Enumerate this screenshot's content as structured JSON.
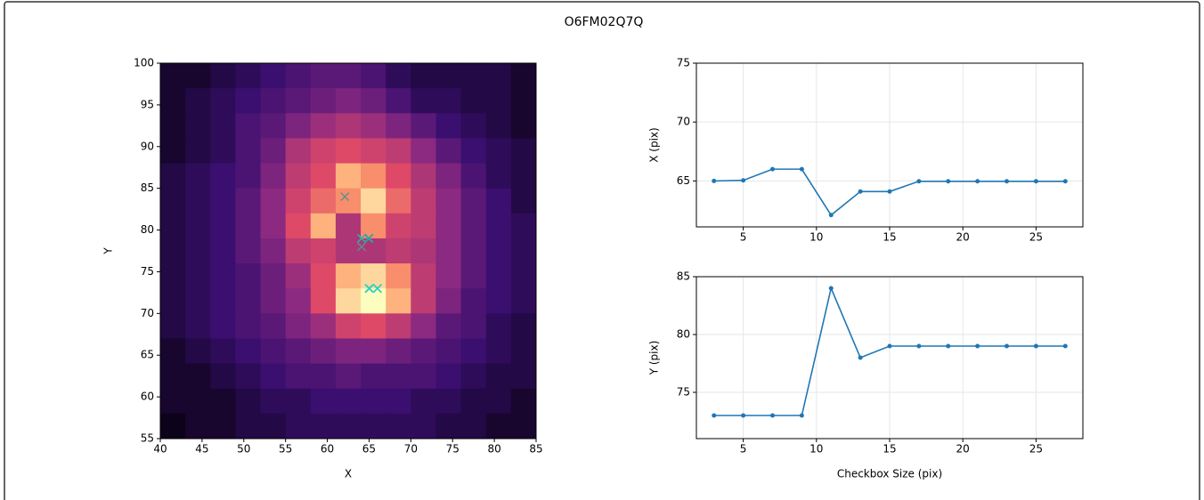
{
  "figure": {
    "title": "O6FM02Q7Q"
  },
  "chart_data": [
    {
      "type": "heatmap",
      "colormap": "magma",
      "xlabel": "X",
      "ylabel": "Y",
      "xlim": [
        40,
        85
      ],
      "ylim": [
        55,
        100
      ],
      "xticks": [
        40,
        45,
        50,
        55,
        60,
        65,
        70,
        75,
        80,
        85
      ],
      "yticks": [
        55,
        60,
        65,
        70,
        75,
        80,
        85,
        90,
        95,
        100
      ],
      "z": [
        [
          0.1,
          0.1,
          0.15,
          0.2,
          0.25,
          0.3,
          0.35,
          0.35,
          0.3,
          0.2,
          0.15,
          0.15,
          0.15,
          0.15,
          0.1
        ],
        [
          0.1,
          0.15,
          0.2,
          0.25,
          0.3,
          0.35,
          0.4,
          0.45,
          0.4,
          0.3,
          0.2,
          0.2,
          0.15,
          0.15,
          0.1
        ],
        [
          0.1,
          0.15,
          0.2,
          0.3,
          0.35,
          0.45,
          0.55,
          0.6,
          0.55,
          0.45,
          0.35,
          0.25,
          0.2,
          0.15,
          0.1
        ],
        [
          0.1,
          0.15,
          0.2,
          0.3,
          0.4,
          0.6,
          0.7,
          0.75,
          0.7,
          0.65,
          0.5,
          0.35,
          0.25,
          0.2,
          0.15
        ],
        [
          0.15,
          0.2,
          0.25,
          0.3,
          0.45,
          0.65,
          0.75,
          0.9,
          0.85,
          0.75,
          0.6,
          0.45,
          0.3,
          0.2,
          0.15
        ],
        [
          0.15,
          0.2,
          0.25,
          0.35,
          0.5,
          0.7,
          0.8,
          0.85,
          0.95,
          0.8,
          0.65,
          0.5,
          0.35,
          0.25,
          0.15
        ],
        [
          0.15,
          0.2,
          0.25,
          0.35,
          0.5,
          0.75,
          0.9,
          0.6,
          0.85,
          0.7,
          0.65,
          0.5,
          0.35,
          0.25,
          0.2
        ],
        [
          0.15,
          0.2,
          0.25,
          0.35,
          0.45,
          0.65,
          0.7,
          0.6,
          0.6,
          0.65,
          0.6,
          0.5,
          0.35,
          0.25,
          0.2
        ],
        [
          0.15,
          0.2,
          0.25,
          0.3,
          0.4,
          0.55,
          0.75,
          0.9,
          0.95,
          0.85,
          0.65,
          0.5,
          0.35,
          0.25,
          0.2
        ],
        [
          0.15,
          0.2,
          0.25,
          0.3,
          0.4,
          0.5,
          0.75,
          0.95,
          1,
          0.9,
          0.65,
          0.45,
          0.3,
          0.25,
          0.2
        ],
        [
          0.15,
          0.2,
          0.25,
          0.3,
          0.35,
          0.45,
          0.55,
          0.7,
          0.75,
          0.65,
          0.5,
          0.35,
          0.3,
          0.2,
          0.15
        ],
        [
          0.1,
          0.15,
          0.2,
          0.25,
          0.3,
          0.35,
          0.4,
          0.45,
          0.45,
          0.4,
          0.35,
          0.3,
          0.25,
          0.2,
          0.15
        ],
        [
          0.1,
          0.1,
          0.15,
          0.2,
          0.25,
          0.3,
          0.3,
          0.35,
          0.3,
          0.3,
          0.3,
          0.25,
          0.2,
          0.15,
          0.15
        ],
        [
          0.1,
          0.1,
          0.1,
          0.15,
          0.2,
          0.2,
          0.25,
          0.25,
          0.25,
          0.25,
          0.2,
          0.2,
          0.15,
          0.15,
          0.1
        ],
        [
          0.05,
          0.1,
          0.1,
          0.15,
          0.15,
          0.2,
          0.2,
          0.2,
          0.2,
          0.2,
          0.2,
          0.15,
          0.15,
          0.1,
          0.1
        ]
      ],
      "markers": {
        "x": [
          65,
          65.05,
          66,
          66,
          62.1,
          64.1,
          64.1,
          64.97,
          64.97,
          64.97,
          64.97,
          64.97,
          64.97
        ],
        "y": [
          73,
          73,
          73,
          73,
          84,
          78,
          79,
          79,
          79,
          79,
          79,
          79,
          79
        ],
        "colors": [
          "#22d3c5",
          "#22d3c5",
          "#22d3c5",
          "#22d3c5",
          "#6a8f8c",
          "#5d8d8c",
          "#2fb4ad",
          "#27a9a4",
          "#27a9a4",
          "#27a9a4",
          "#27a9a4",
          "#27a9a4",
          "#27a9a4"
        ]
      }
    },
    {
      "type": "line",
      "ylabel": "X (pix)",
      "grid": true,
      "xlim": [
        1.8,
        28.2
      ],
      "ylim": [
        61.1,
        75
      ],
      "xticks": [
        5,
        10,
        15,
        20,
        25
      ],
      "yticks": [
        65,
        70,
        75
      ],
      "x": [
        3,
        5,
        7,
        9,
        11,
        13,
        15,
        17,
        19,
        21,
        23,
        25,
        27
      ],
      "series": [
        {
          "color": "#1f77b4",
          "values": [
            65,
            65.05,
            66,
            66,
            62.1,
            64.1,
            64.1,
            64.97,
            64.97,
            64.97,
            64.97,
            64.97,
            64.97
          ]
        }
      ]
    },
    {
      "type": "line",
      "ylabel": "Y (pix)",
      "xlabel": "Checkbox Size (pix)",
      "grid": true,
      "xlim": [
        1.8,
        28.2
      ],
      "ylim": [
        71,
        85
      ],
      "xticks": [
        5,
        10,
        15,
        20,
        25
      ],
      "yticks": [
        75,
        80,
        85
      ],
      "x": [
        3,
        5,
        7,
        9,
        11,
        13,
        15,
        17,
        19,
        21,
        23,
        25,
        27
      ],
      "series": [
        {
          "color": "#1f77b4",
          "values": [
            73,
            73,
            73,
            73,
            84,
            78,
            79,
            79,
            79,
            79,
            79,
            79,
            79
          ]
        }
      ]
    }
  ]
}
